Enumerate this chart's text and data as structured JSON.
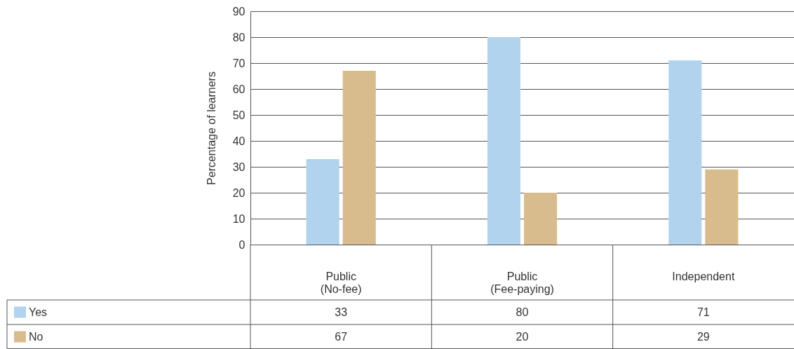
{
  "chart_data": {
    "type": "bar",
    "ylabel": "Percentage of learners",
    "categories": [
      "Public\n(No-fee)",
      "Public\n(Fee-paying)",
      "Independent"
    ],
    "series": [
      {
        "name": "Yes",
        "color": "#b1d3ee",
        "values": [
          33,
          80,
          71
        ]
      },
      {
        "name": "No",
        "color": "#d9bc8d",
        "values": [
          67,
          20,
          29
        ]
      }
    ],
    "ylim": [
      0,
      90
    ],
    "yticks": [
      0,
      10,
      20,
      30,
      40,
      50,
      60,
      70,
      80,
      90
    ],
    "grid": "y",
    "legend": "bottom left",
    "data_labels": true
  }
}
